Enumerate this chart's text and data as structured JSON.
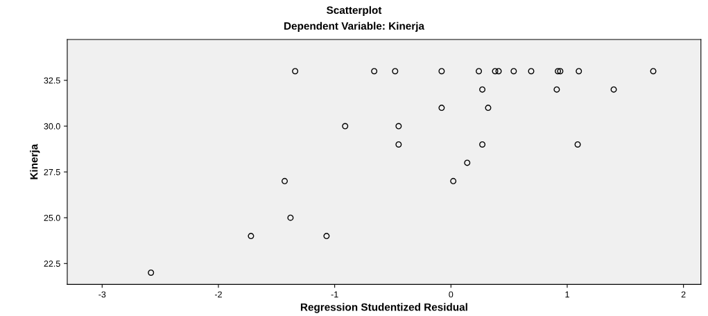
{
  "chart_data": {
    "type": "scatter",
    "title": "Scatterplot",
    "subtitle": "Dependent Variable: Kinerja",
    "xlabel": "Regression Studentized Residual",
    "ylabel": "Kinerja",
    "x": [
      -1.34,
      -0.66,
      -0.48,
      -0.08,
      0.24,
      0.38,
      0.41,
      0.54,
      0.69,
      0.92,
      0.94,
      1.1,
      1.74,
      0.27,
      0.91,
      1.4,
      -0.08,
      0.32,
      -0.91,
      -0.45,
      -0.45,
      0.27,
      1.09,
      0.14,
      -1.43,
      0.02,
      -1.38,
      -1.72,
      -1.07,
      -2.58
    ],
    "values": [
      33,
      33,
      33,
      33,
      33,
      33,
      33,
      33,
      33,
      33,
      33,
      33,
      33,
      32,
      32,
      32,
      31,
      31,
      30,
      30,
      29,
      29,
      29,
      28,
      27,
      27,
      25,
      24,
      24,
      22
    ],
    "color": "#000000",
    "marker": "circle",
    "xlim": [
      -3.3,
      2.15
    ],
    "ylim": [
      21.36,
      34.73
    ],
    "xticks": [
      -3,
      -2,
      -1,
      0,
      1,
      2
    ],
    "yticks": [
      {
        "value": 22.5,
        "label": "22.5"
      },
      {
        "value": 25,
        "label": "25.0"
      },
      {
        "value": 27.5,
        "label": "27.5"
      },
      {
        "value": 30,
        "label": "30.0"
      },
      {
        "value": 32.5,
        "label": "32.5"
      }
    ],
    "grid": false,
    "legend": false
  }
}
